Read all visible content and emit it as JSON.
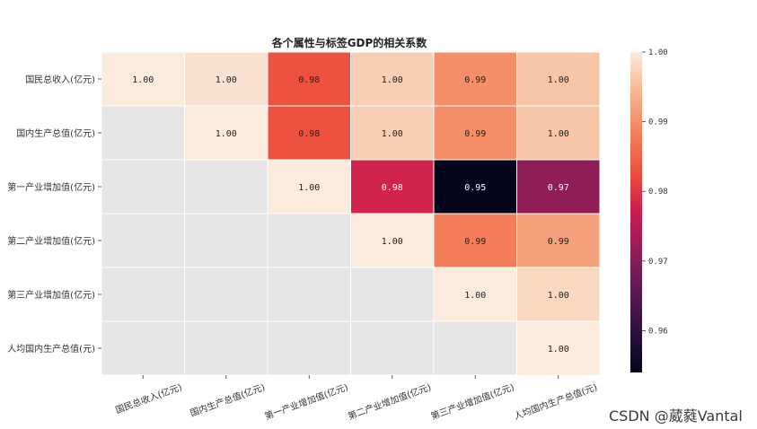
{
  "chart_data": {
    "type": "heatmap",
    "title": "各个属性与标签GDP的相关系数",
    "row_labels": [
      "国民总收入(亿元)",
      "国内生产总值(亿元)",
      "第一产业增加值(亿元)",
      "第二产业增加值(亿元)",
      "第三产业增加值(亿元)",
      "人均国内生产总值(元)"
    ],
    "col_labels": [
      "国民总收入(亿元)",
      "国内生产总值(亿元)",
      "第一产业增加值(亿元)",
      "第二产业增加值(亿元)",
      "第三产业增加值(亿元)",
      "人均国内生产总值(元)"
    ],
    "values": [
      [
        1.0,
        0.999,
        0.983,
        0.997,
        0.99,
        0.996
      ],
      [
        null,
        1.0,
        0.983,
        0.997,
        0.99,
        0.996
      ],
      [
        null,
        null,
        1.0,
        0.978,
        0.953,
        0.971
      ],
      [
        null,
        null,
        null,
        1.0,
        0.988,
        0.992
      ],
      [
        null,
        null,
        null,
        null,
        1.0,
        0.998
      ],
      [
        null,
        null,
        null,
        null,
        null,
        1.0
      ]
    ],
    "annotations": [
      [
        "1.00",
        "1.00",
        "0.98",
        "1.00",
        "0.99",
        "1.00"
      ],
      [
        "",
        "1.00",
        "0.98",
        "1.00",
        "0.99",
        "1.00"
      ],
      [
        "",
        "",
        "1.00",
        "0.98",
        "0.95",
        "0.97"
      ],
      [
        "",
        "",
        "",
        "1.00",
        "0.99",
        "0.99"
      ],
      [
        "",
        "",
        "",
        "",
        "1.00",
        "1.00"
      ],
      [
        "",
        "",
        "",
        "",
        "",
        "1.00"
      ]
    ],
    "masked_color": "#e5e5e5",
    "colorbar": {
      "vmin": 0.954,
      "vmax": 1.0,
      "ticks": [
        0.96,
        0.97,
        0.98,
        0.99,
        1.0
      ],
      "tick_labels": [
        "0.96",
        "0.97",
        "0.98",
        "0.99",
        "1.00"
      ],
      "colormap": "rocket"
    }
  },
  "watermark": "CSDN @葳蕤Vantal"
}
